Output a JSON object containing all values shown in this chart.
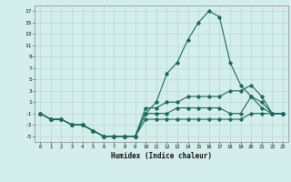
{
  "xlabel": "Humidex (Indice chaleur)",
  "bg_color": "#d4eeeb",
  "grid_color": "#b8d8d4",
  "line_color": "#1a6b5a",
  "xlim": [
    -0.5,
    23.5
  ],
  "ylim": [
    -6,
    18
  ],
  "xticks": [
    0,
    1,
    2,
    3,
    4,
    5,
    6,
    7,
    8,
    9,
    10,
    11,
    12,
    13,
    14,
    15,
    16,
    17,
    18,
    19,
    20,
    21,
    22,
    23
  ],
  "yticks": [
    -5,
    -3,
    -1,
    1,
    3,
    5,
    7,
    9,
    11,
    13,
    15,
    17
  ],
  "x": [
    0,
    1,
    2,
    3,
    4,
    5,
    6,
    7,
    8,
    9,
    10,
    11,
    12,
    13,
    14,
    15,
    16,
    17,
    18,
    19,
    20,
    21,
    22,
    23
  ],
  "lines": [
    [
      -1,
      -2,
      -2,
      -3,
      -3,
      -4,
      -5,
      -5,
      -5,
      -5,
      -1,
      1,
      6,
      8,
      12,
      15,
      17,
      16,
      8,
      4,
      2,
      0,
      -1,
      -1
    ],
    [
      -1,
      -2,
      -2,
      -3,
      -3,
      -4,
      -5,
      -5,
      -5,
      -5,
      -2,
      -2,
      -2,
      -2,
      -2,
      -2,
      -2,
      -2,
      -2,
      -2,
      -1,
      -1,
      -1,
      -1
    ],
    [
      -1,
      -2,
      -2,
      -3,
      -3,
      -4,
      -5,
      -5,
      -5,
      -5,
      -1,
      -1,
      -1,
      0,
      0,
      0,
      0,
      0,
      -1,
      -1,
      2,
      1,
      -1,
      -1
    ],
    [
      -1,
      -2,
      -2,
      -3,
      -3,
      -4,
      -5,
      -5,
      -5,
      -5,
      0,
      0,
      1,
      1,
      2,
      2,
      2,
      2,
      3,
      3,
      4,
      2,
      -1,
      -1
    ]
  ]
}
